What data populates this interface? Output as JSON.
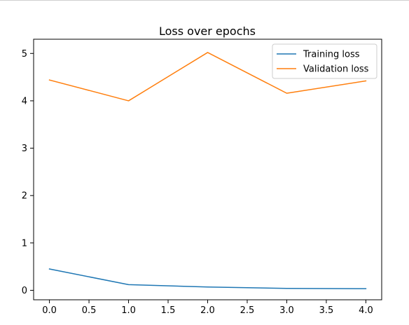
{
  "chart_data": {
    "type": "line",
    "title": "Loss over epochs",
    "xlabel": "",
    "ylabel": "",
    "x": [
      0,
      1,
      2,
      3,
      4
    ],
    "xlim": [
      -0.2,
      4.2
    ],
    "ylim": [
      -0.2,
      5.3
    ],
    "xticks": [
      "0.0",
      "0.5",
      "1.0",
      "1.5",
      "2.0",
      "2.5",
      "3.0",
      "3.5",
      "4.0"
    ],
    "yticks": [
      "0",
      "1",
      "2",
      "3",
      "4",
      "5"
    ],
    "grid": false,
    "legend_position": "top-right",
    "series": [
      {
        "name": "Training loss",
        "color": "#1f77b4",
        "values": [
          0.45,
          0.12,
          0.07,
          0.04,
          0.035
        ]
      },
      {
        "name": "Validation loss",
        "color": "#ff7f0e",
        "values": [
          4.44,
          4.0,
          5.02,
          4.16,
          4.42
        ]
      }
    ]
  }
}
